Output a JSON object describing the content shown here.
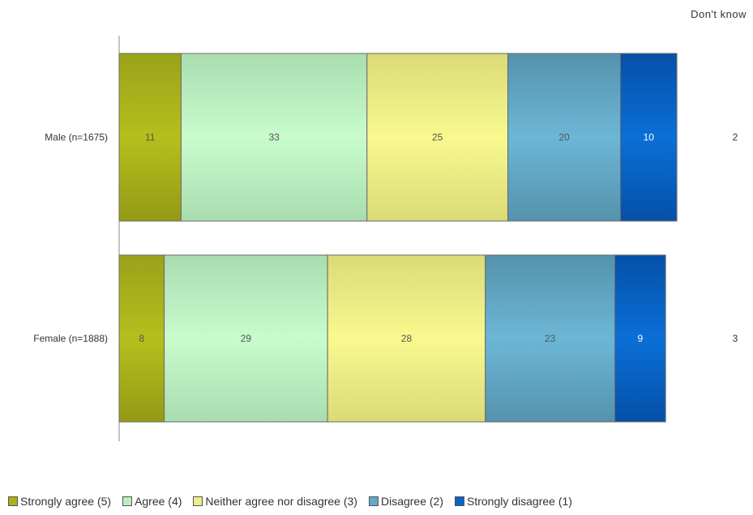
{
  "chart_data": {
    "type": "bar",
    "orientation": "horizontal",
    "stacked": true,
    "categories": [
      "Male (n=1675)",
      "Female (n=1888)"
    ],
    "series": [
      {
        "name": "Strongly agree (5)",
        "values": [
          11,
          8
        ],
        "color": "#a9b218"
      },
      {
        "name": "Agree (4)",
        "values": [
          33,
          29
        ],
        "color": "#bdeec0"
      },
      {
        "name": "Neither agree nor disagree (3)",
        "values": [
          25,
          28
        ],
        "color": "#eeee8a"
      },
      {
        "name": "Disagree (2)",
        "values": [
          20,
          23
        ],
        "color": "#63a9c8"
      },
      {
        "name": "Strongly disagree (1)",
        "values": [
          10,
          9
        ],
        "color": "#0a62c4"
      }
    ],
    "dont_know": {
      "label": "Don't know",
      "values": [
        2,
        3
      ]
    },
    "legend_position": "bottom",
    "grid": false
  }
}
